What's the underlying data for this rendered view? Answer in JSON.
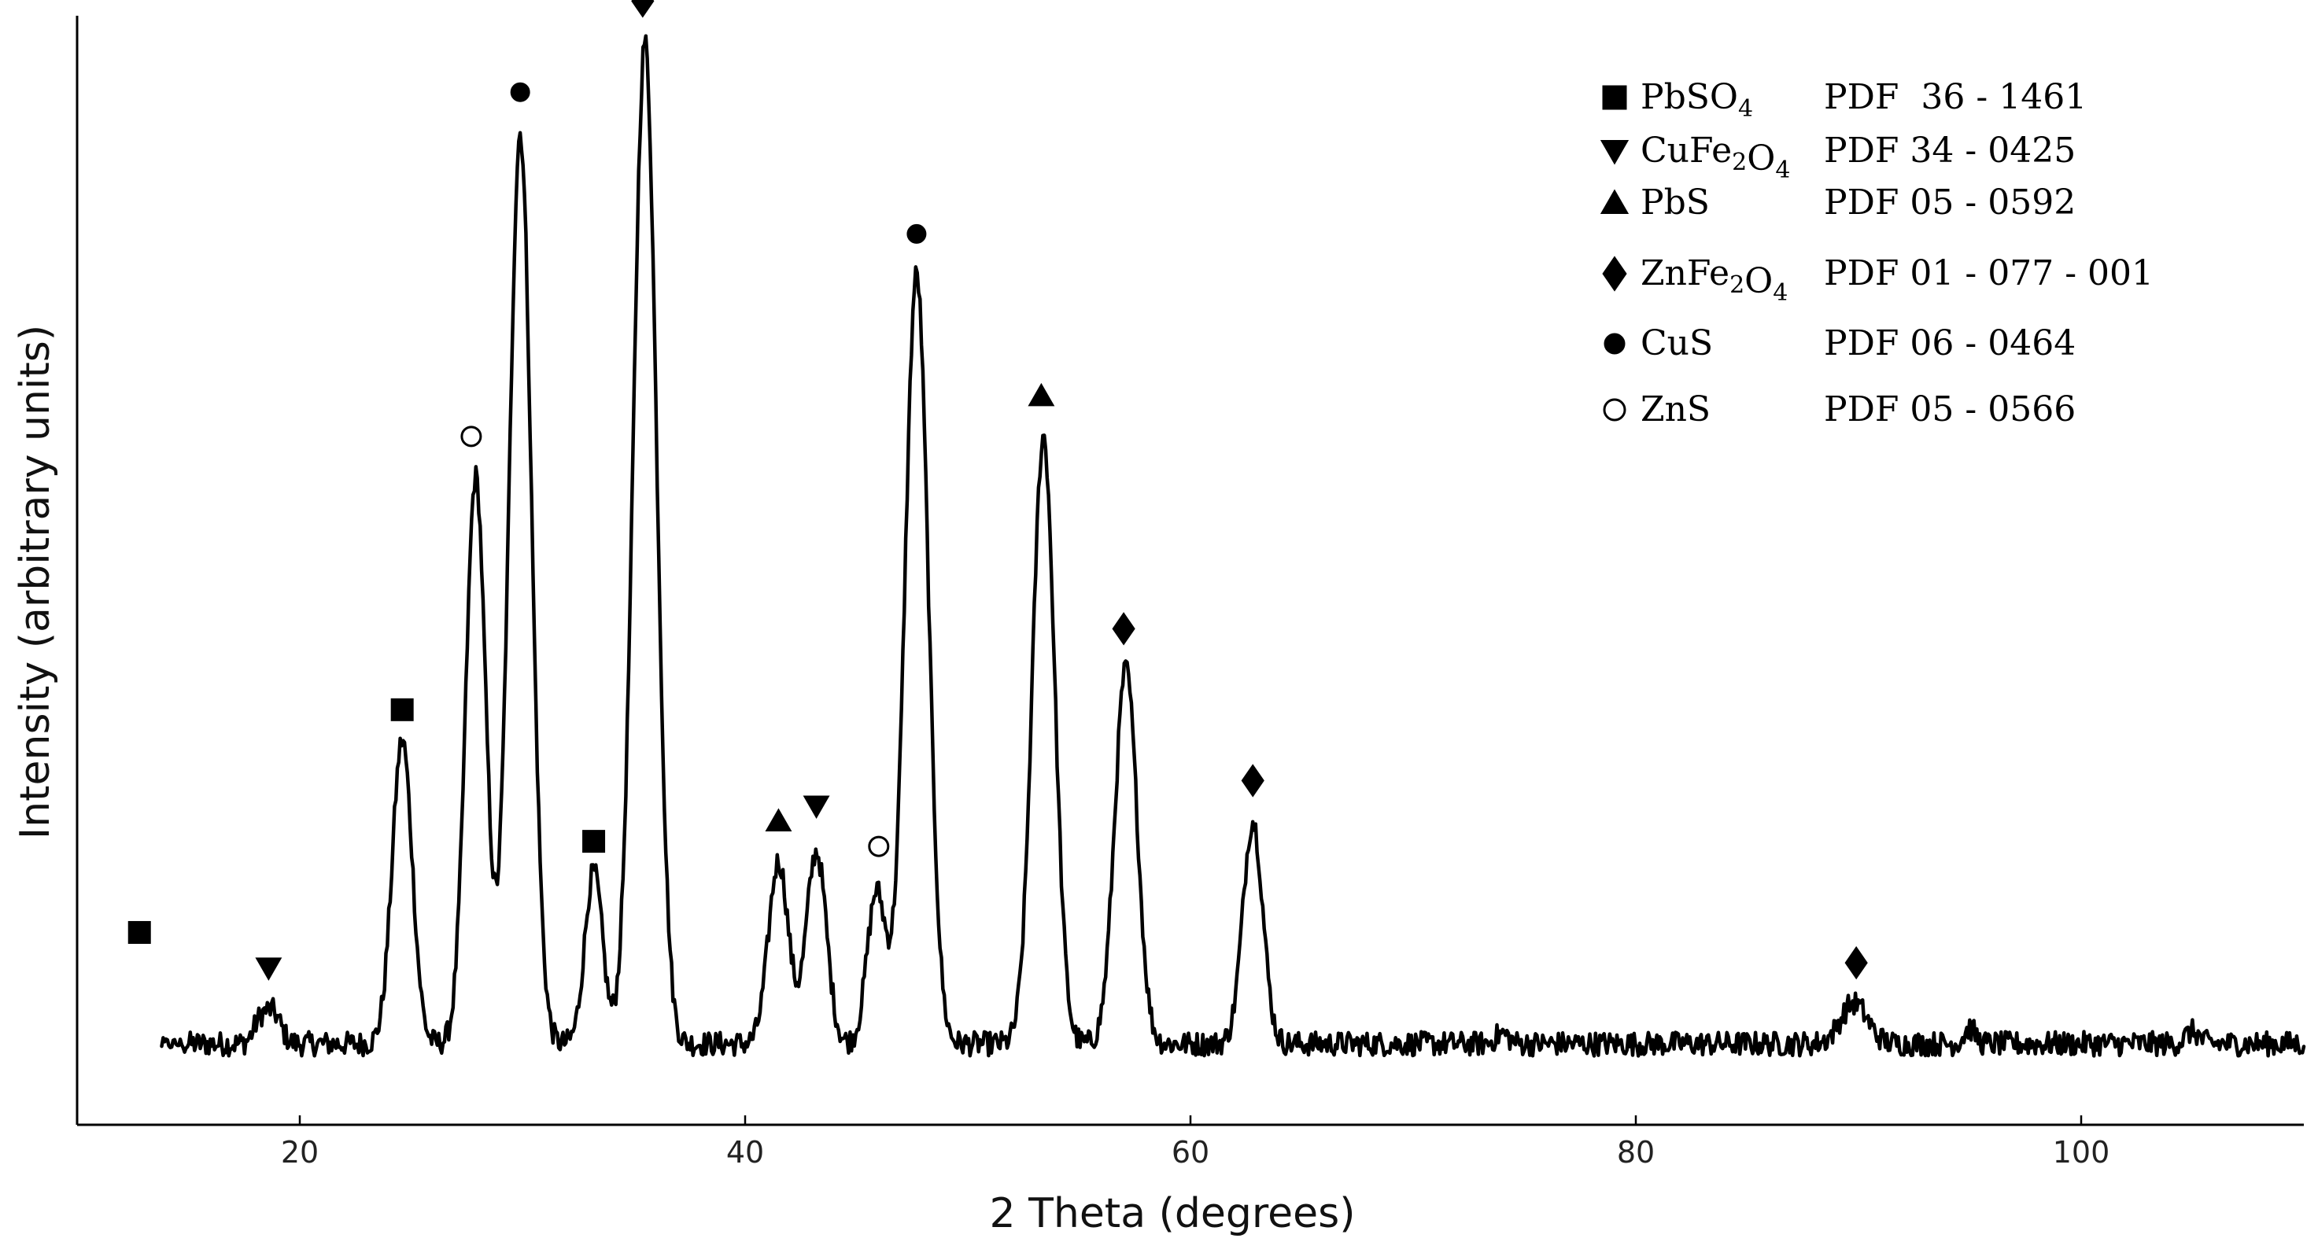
{
  "chart_data": {
    "type": "line",
    "title": "",
    "xlabel": "2 Theta (degrees)",
    "ylabel": "Intensity (arbitrary units)",
    "xlim": [
      10,
      110
    ],
    "ylim": [
      -0.08,
      1.0
    ],
    "xticks": [
      20,
      40,
      60,
      80,
      100
    ],
    "xtick_labels": [
      "20",
      "40",
      "60",
      "80",
      "100"
    ],
    "y_ticks_shown": false,
    "grid": false,
    "legend_position": "top-right",
    "baseline": 0.0,
    "noise_amplitude": 0.012,
    "peaks": [
      {
        "x": 12.8,
        "height": 0.07,
        "width": 0.45
      },
      {
        "x": 18.2,
        "height": 0.02,
        "width": 0.3
      },
      {
        "x": 18.8,
        "height": 0.03,
        "width": 0.35
      },
      {
        "x": 24.6,
        "height": 0.3,
        "width": 0.45
      },
      {
        "x": 27.9,
        "height": 0.56,
        "width": 0.45
      },
      {
        "x": 29.9,
        "height": 0.9,
        "width": 0.5
      },
      {
        "x": 33.2,
        "height": 0.17,
        "width": 0.4
      },
      {
        "x": 35.5,
        "height": 0.99,
        "width": 0.52
      },
      {
        "x": 41.5,
        "height": 0.18,
        "width": 0.45
      },
      {
        "x": 43.2,
        "height": 0.19,
        "width": 0.45
      },
      {
        "x": 45.9,
        "height": 0.15,
        "width": 0.42
      },
      {
        "x": 47.7,
        "height": 0.76,
        "width": 0.52
      },
      {
        "x": 53.4,
        "height": 0.6,
        "width": 0.5
      },
      {
        "x": 57.1,
        "height": 0.37,
        "width": 0.5
      },
      {
        "x": 62.8,
        "height": 0.22,
        "width": 0.45
      },
      {
        "x": 74.0,
        "height": 0.01,
        "width": 0.3
      },
      {
        "x": 89.8,
        "height": 0.04,
        "width": 0.6
      },
      {
        "x": 95.0,
        "height": 0.015,
        "width": 0.25
      },
      {
        "x": 105.0,
        "height": 0.012,
        "width": 0.3
      }
    ],
    "peak_markers": [
      {
        "x": 12.8,
        "y": 0.11,
        "phase": "PbSO4"
      },
      {
        "x": 18.6,
        "y": 0.075,
        "phase": "CuFe2O4"
      },
      {
        "x": 24.6,
        "y": 0.33,
        "phase": "PbSO4"
      },
      {
        "x": 27.7,
        "y": 0.6,
        "phase": "ZnS"
      },
      {
        "x": 29.9,
        "y": 0.94,
        "phase": "CuS"
      },
      {
        "x": 33.2,
        "y": 0.2,
        "phase": "PbSO4"
      },
      {
        "x": 35.4,
        "y": 1.03,
        "phase": "ZnFe2O4"
      },
      {
        "x": 41.5,
        "y": 0.22,
        "phase": "PbS"
      },
      {
        "x": 43.2,
        "y": 0.235,
        "phase": "CuFe2O4"
      },
      {
        "x": 46.0,
        "y": 0.195,
        "phase": "ZnS"
      },
      {
        "x": 47.7,
        "y": 0.8,
        "phase": "CuS"
      },
      {
        "x": 53.3,
        "y": 0.64,
        "phase": "PbS"
      },
      {
        "x": 57.0,
        "y": 0.41,
        "phase": "ZnFe2O4"
      },
      {
        "x": 62.8,
        "y": 0.26,
        "phase": "ZnFe2O4"
      },
      {
        "x": 89.9,
        "y": 0.08,
        "phase": "ZnFe2O4"
      }
    ],
    "legend": [
      {
        "phase": "PbSO4",
        "marker": "square",
        "filled": true,
        "name_base": "PbSO",
        "name_sub": "4",
        "name_tail": "",
        "pdf": "PDF  36 - 1461"
      },
      {
        "phase": "CuFe2O4",
        "marker": "triangle-down",
        "filled": true,
        "name_base": "CuFe",
        "name_sub": "2",
        "name_mid": "O",
        "name_sub2": "4",
        "pdf": "PDF 34 - 0425"
      },
      {
        "phase": "PbS",
        "marker": "triangle-up",
        "filled": true,
        "name_base": "PbS",
        "pdf": "PDF 05 - 0592"
      },
      {
        "phase": "ZnFe2O4",
        "marker": "diamond",
        "filled": true,
        "name_base": "ZnFe",
        "name_sub": "2",
        "name_mid": "O",
        "name_sub2": "4",
        "pdf": "PDF 01 - 077 - 001"
      },
      {
        "phase": "CuS",
        "marker": "circle",
        "filled": true,
        "name_base": "CuS",
        "pdf": "PDF 06 - 0464"
      },
      {
        "phase": "ZnS",
        "marker": "circle",
        "filled": false,
        "name_base": "ZnS",
        "pdf": "PDF 05 - 0566"
      }
    ]
  }
}
